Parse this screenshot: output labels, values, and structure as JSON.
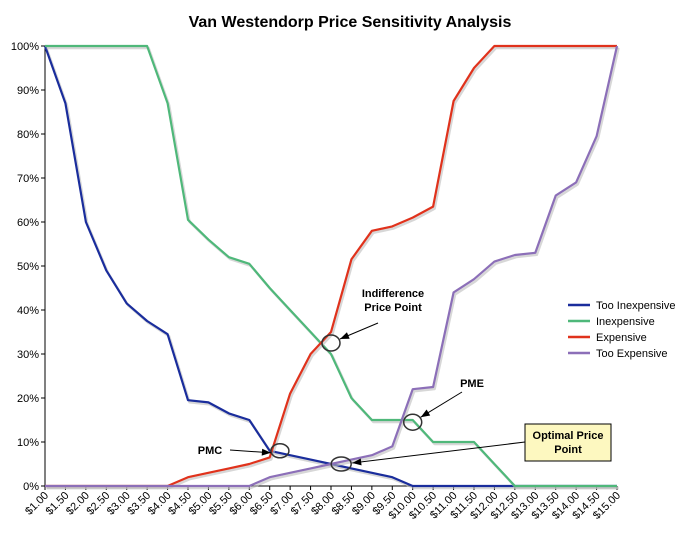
{
  "chart_data": {
    "type": "line",
    "title": "Van Westendorp Price Sensitivity Analysis",
    "xlabel": "",
    "ylabel": "",
    "ylim": [
      0,
      100
    ],
    "yticks": [
      "0%",
      "10%",
      "20%",
      "30%",
      "40%",
      "50%",
      "60%",
      "70%",
      "80%",
      "90%",
      "100%"
    ],
    "grid": false,
    "legend_position": "right",
    "categories": [
      "$1.00",
      "$1.50",
      "$2.00",
      "$2.50",
      "$3.00",
      "$3.50",
      "$4.00",
      "$4.50",
      "$5.00",
      "$5.50",
      "$6.00",
      "$6.50",
      "$7.00",
      "$7.50",
      "$8.00",
      "$8.50",
      "$9.00",
      "$9.50",
      "$10.00",
      "$10.50",
      "$11.00",
      "$11.50",
      "$12.00",
      "$12.50",
      "$13.00",
      "$13.50",
      "$14.00",
      "$14.50",
      "$15.00"
    ],
    "series": [
      {
        "name": "Too Inexpensive",
        "color": "#1a2d9c",
        "points": [
          [
            1.0,
            100
          ],
          [
            1.5,
            87
          ],
          [
            2.0,
            60
          ],
          [
            2.5,
            49
          ],
          [
            3.0,
            41.5
          ],
          [
            3.5,
            37.5
          ],
          [
            4.0,
            34.5
          ],
          [
            4.5,
            19.5
          ],
          [
            5.0,
            19
          ],
          [
            5.5,
            16.5
          ],
          [
            6.0,
            15
          ],
          [
            6.5,
            8
          ],
          [
            7.0,
            7
          ],
          [
            7.5,
            6
          ],
          [
            8.0,
            5
          ],
          [
            8.5,
            4
          ],
          [
            9.0,
            3
          ],
          [
            9.5,
            2
          ],
          [
            10.0,
            0
          ],
          [
            10.5,
            0
          ],
          [
            11.0,
            0
          ],
          [
            11.5,
            0
          ],
          [
            12.0,
            0
          ],
          [
            12.5,
            0
          ],
          [
            13.0,
            0
          ],
          [
            13.5,
            0
          ],
          [
            14.0,
            0
          ],
          [
            14.5,
            0
          ],
          [
            15.0,
            0
          ]
        ]
      },
      {
        "name": "Inexpensive",
        "color": "#4fb87a",
        "points": [
          [
            1.0,
            100
          ],
          [
            1.5,
            100
          ],
          [
            2.0,
            100
          ],
          [
            2.5,
            100
          ],
          [
            3.0,
            100
          ],
          [
            3.5,
            100
          ],
          [
            4.0,
            87
          ],
          [
            4.5,
            60.5
          ],
          [
            5.0,
            56
          ],
          [
            5.5,
            52
          ],
          [
            6.0,
            50.5
          ],
          [
            6.5,
            45
          ],
          [
            7.0,
            40
          ],
          [
            7.5,
            35
          ],
          [
            8.0,
            30
          ],
          [
            8.5,
            20
          ],
          [
            9.0,
            15
          ],
          [
            9.5,
            15
          ],
          [
            10.0,
            15
          ],
          [
            10.5,
            10
          ],
          [
            11.0,
            10
          ],
          [
            11.5,
            10
          ],
          [
            12.0,
            5
          ],
          [
            12.5,
            0
          ],
          [
            13.0,
            0
          ],
          [
            13.5,
            0
          ],
          [
            14.0,
            0
          ],
          [
            14.5,
            0
          ],
          [
            15.0,
            0
          ]
        ]
      },
      {
        "name": "Expensive",
        "color": "#e0321c",
        "points": [
          [
            1.0,
            0
          ],
          [
            1.5,
            0
          ],
          [
            2.0,
            0
          ],
          [
            2.5,
            0
          ],
          [
            3.0,
            0
          ],
          [
            3.5,
            0
          ],
          [
            4.0,
            0
          ],
          [
            4.5,
            2
          ],
          [
            5.0,
            3
          ],
          [
            5.5,
            4
          ],
          [
            6.0,
            5
          ],
          [
            6.5,
            6.5
          ],
          [
            7.0,
            21
          ],
          [
            7.5,
            30
          ],
          [
            8.0,
            35
          ],
          [
            8.5,
            51.5
          ],
          [
            9.0,
            58
          ],
          [
            9.5,
            59
          ],
          [
            10.0,
            61
          ],
          [
            10.5,
            63.5
          ],
          [
            11.0,
            87.5
          ],
          [
            11.5,
            95
          ],
          [
            12.0,
            100
          ],
          [
            12.5,
            100
          ],
          [
            13.0,
            100
          ],
          [
            13.5,
            100
          ],
          [
            14.0,
            100
          ],
          [
            14.5,
            100
          ],
          [
            15.0,
            100
          ]
        ]
      },
      {
        "name": "Too Expensive",
        "color": "#8c6fb8",
        "points": [
          [
            1.0,
            0
          ],
          [
            1.5,
            0
          ],
          [
            2.0,
            0
          ],
          [
            2.5,
            0
          ],
          [
            3.0,
            0
          ],
          [
            3.5,
            0
          ],
          [
            4.0,
            0
          ],
          [
            4.5,
            0
          ],
          [
            5.0,
            0
          ],
          [
            5.5,
            0
          ],
          [
            6.0,
            0
          ],
          [
            6.5,
            2
          ],
          [
            7.0,
            3
          ],
          [
            7.5,
            4
          ],
          [
            8.0,
            5
          ],
          [
            8.5,
            6
          ],
          [
            9.0,
            7
          ],
          [
            9.5,
            9
          ],
          [
            10.0,
            22
          ],
          [
            10.5,
            22.5
          ],
          [
            11.0,
            44
          ],
          [
            11.5,
            47
          ],
          [
            12.0,
            51
          ],
          [
            12.5,
            52.5
          ],
          [
            13.0,
            53
          ],
          [
            13.5,
            66
          ],
          [
            14.0,
            69
          ],
          [
            14.5,
            79.5
          ],
          [
            15.0,
            100
          ]
        ]
      }
    ],
    "annotations": [
      {
        "id": "indifference",
        "text_lines": [
          "Indifference",
          "Price Point"
        ],
        "at": [
          8.0,
          32.5
        ],
        "boxed": false
      },
      {
        "id": "pme",
        "text_lines": [
          "PME"
        ],
        "at": [
          10.0,
          14.5
        ],
        "boxed": false
      },
      {
        "id": "pmc",
        "text_lines": [
          "PMC"
        ],
        "at": [
          6.75,
          8
        ],
        "boxed": false
      },
      {
        "id": "optimal",
        "text_lines": [
          "Optimal Price",
          "Point"
        ],
        "at": [
          8.25,
          5
        ],
        "boxed": true,
        "box_fill": "#fdf8c0"
      }
    ]
  }
}
